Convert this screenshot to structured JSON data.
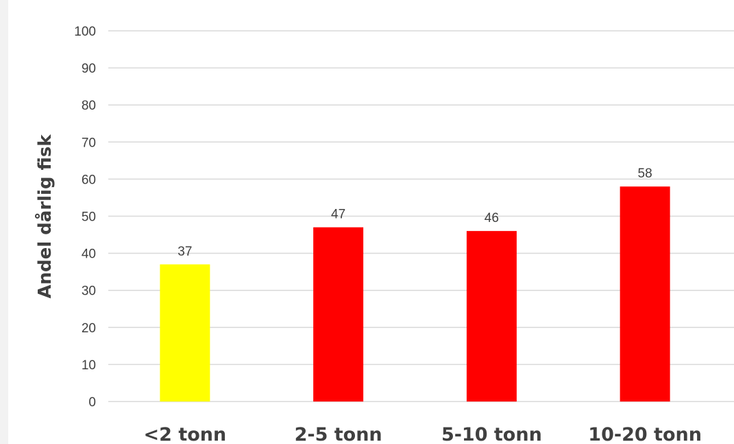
{
  "chart_data": {
    "type": "bar",
    "title": "",
    "xlabel": "",
    "ylabel": "Andel dårlig fisk",
    "categories": [
      "<2 tonn",
      "2-5 tonn",
      "5-10 tonn",
      "10-20 tonn"
    ],
    "values": [
      37,
      47,
      46,
      58
    ],
    "value_labels": [
      "37",
      "47",
      "46",
      "58"
    ],
    "colors": [
      "#ffff00",
      "#ff0000",
      "#ff0000",
      "#ff0000"
    ],
    "ylim": [
      0,
      100
    ],
    "yticks": [
      "0",
      "10",
      "20",
      "30",
      "40",
      "50",
      "60",
      "70",
      "80",
      "90",
      "100"
    ],
    "grid": true,
    "legend": "none"
  }
}
